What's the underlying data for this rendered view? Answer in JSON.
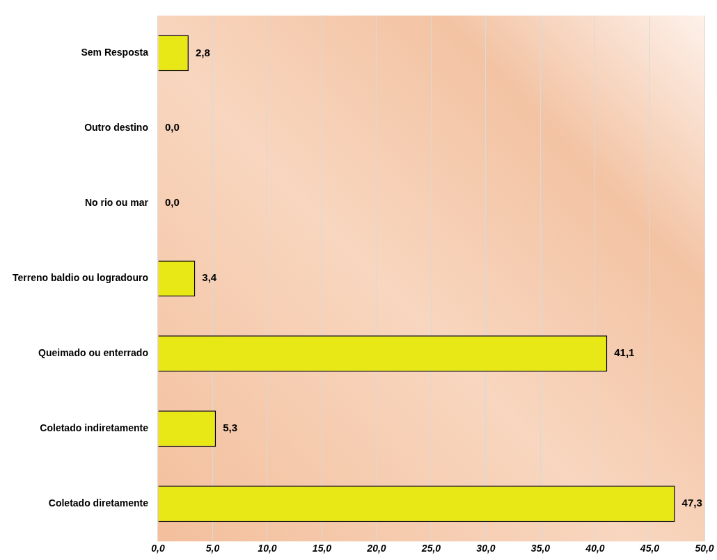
{
  "chart_data": {
    "type": "bar",
    "orientation": "horizontal",
    "categories": [
      "Sem Resposta",
      "Outro destino",
      "No rio ou mar",
      "Terreno baldio ou logradouro",
      "Queimado ou enterrado",
      "Coletado indiretamente",
      "Coletado diretamente"
    ],
    "values": [
      2.8,
      0,
      0,
      3.4,
      41.1,
      5.3,
      47.3
    ],
    "value_labels": [
      "2,8",
      "0,0",
      "0,0",
      "3,4",
      "41,1",
      "5,3",
      "47,3"
    ],
    "color": "#e8e816",
    "xlim": [
      0,
      50
    ],
    "xticks": [
      {
        "value": 0,
        "label": "0,0"
      },
      {
        "value": 5,
        "label": "5,0"
      },
      {
        "value": 10,
        "label": "10,0"
      },
      {
        "value": 15,
        "label": "15,0"
      },
      {
        "value": 20,
        "label": "20,0"
      },
      {
        "value": 25,
        "label": "25,0"
      },
      {
        "value": 30,
        "label": "30,0"
      },
      {
        "value": 35,
        "label": "35,0"
      },
      {
        "value": 40,
        "label": "40,0"
      },
      {
        "value": 45,
        "label": "45,0"
      },
      {
        "value": 50,
        "label": "50,0"
      }
    ],
    "grid": "x",
    "legend": false
  }
}
